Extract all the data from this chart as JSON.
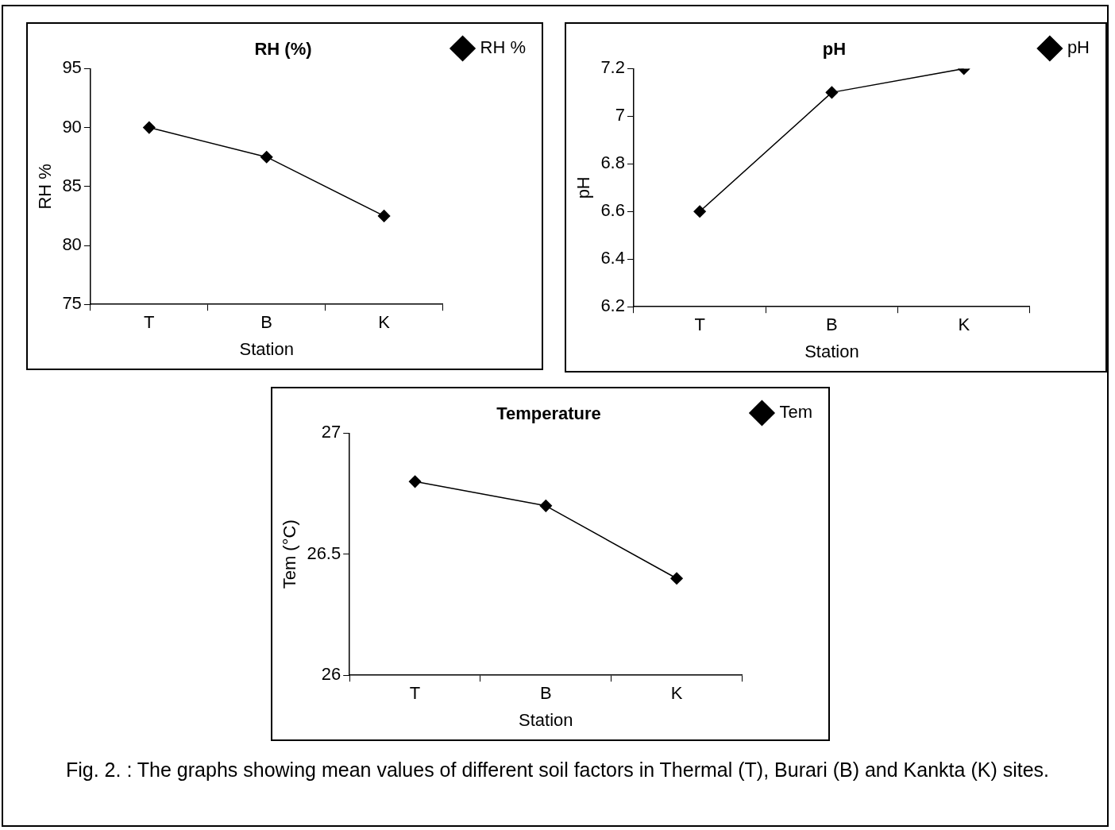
{
  "chart_data": [
    {
      "type": "line",
      "title": "RH (%)",
      "xlabel": "Station",
      "ylabel": "RH %",
      "categories": [
        "T",
        "B",
        "K"
      ],
      "series": [
        {
          "name": "RH %",
          "color": "#000000",
          "values": [
            90,
            87.5,
            82.5
          ]
        }
      ],
      "ylim": [
        75,
        95
      ],
      "yticks": [
        75,
        80,
        85,
        90,
        95
      ],
      "grid": false,
      "legend": "top right",
      "marker": "diamond",
      "line_style": "solid"
    },
    {
      "type": "line",
      "title": "pH",
      "xlabel": "Station",
      "ylabel": "pH",
      "categories": [
        "T",
        "B",
        "K"
      ],
      "series": [
        {
          "name": "pH",
          "color": "#000000",
          "values": [
            6.6,
            7.1,
            7.2
          ]
        }
      ],
      "ylim": [
        6.2,
        7.2
      ],
      "yticks": [
        6.2,
        6.4,
        6.6,
        6.8,
        7,
        7.2
      ],
      "grid": false,
      "legend": "top right",
      "marker": "diamond",
      "line_style": "solid"
    },
    {
      "type": "line",
      "title": "Temperature",
      "xlabel": "Station",
      "ylabel": "Tem (°C)",
      "categories": [
        "T",
        "B",
        "K"
      ],
      "series": [
        {
          "name": "Tem",
          "color": "#000000",
          "values": [
            26.8,
            26.7,
            26.4
          ]
        }
      ],
      "ylim": [
        26,
        27
      ],
      "yticks": [
        26,
        26.5,
        27
      ],
      "grid": false,
      "legend": "top right",
      "marker": "diamond",
      "line_style": "solid",
      "annotations": [
        "Fig. 2. : The graphs showing mean values of different soil factors in Thermal (T), Burari (B) and Kankta (K) sites."
      ]
    }
  ]
}
